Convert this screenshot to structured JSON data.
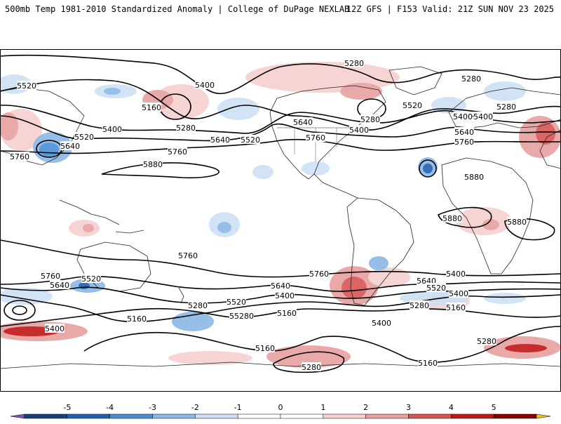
{
  "header": {
    "title": "500mb Temp 1981-2010 Standardized Anomaly | College of DuPage NEXLAB",
    "run_info": "12Z GFS | F153 Valid: 21Z SUN NOV 23 2025"
  },
  "map": {
    "field": "500mb Temp Standardized Anomaly",
    "contour_field": "500mb Height",
    "contour_labels": [
      "5280",
      "5280",
      "5400",
      "5160",
      "5280",
      "5400",
      "5640",
      "5520",
      "5400",
      "5280",
      "5520",
      "5640",
      "5760",
      "5640",
      "5520",
      "5400",
      "5760",
      "5520",
      "5280",
      "5400",
      "5640",
      "5760",
      "5880",
      "5880",
      "5880",
      "5880",
      "5760",
      "5760",
      "5640",
      "5520",
      "5760",
      "5640",
      "5520",
      "5400",
      "5280",
      "5160",
      "5400",
      "5400",
      "5160",
      "5280",
      "5160",
      "5760",
      "5640",
      "5520",
      "5400",
      "5280",
      "5160",
      "5280",
      "5160",
      "5280",
      "5400",
      "5280"
    ]
  },
  "colorbar": {
    "ticks": [
      "-5",
      "-4",
      "-3",
      "-2",
      "-1",
      "0",
      "1",
      "2",
      "3",
      "4",
      "5"
    ],
    "colors": {
      "below_min": "#7e55b4",
      "n5": "#1c3f7a",
      "n4": "#2060b0",
      "n3": "#4a8fd4",
      "n2": "#8bb8e6",
      "n1": "#cde0f4",
      "zero": "#ffffff",
      "p1": "#f6d0d0",
      "p2": "#e8a0a0",
      "p3": "#d85555",
      "p4": "#c01818",
      "p5": "#8a0000",
      "above_max": "#f0c020"
    }
  }
}
